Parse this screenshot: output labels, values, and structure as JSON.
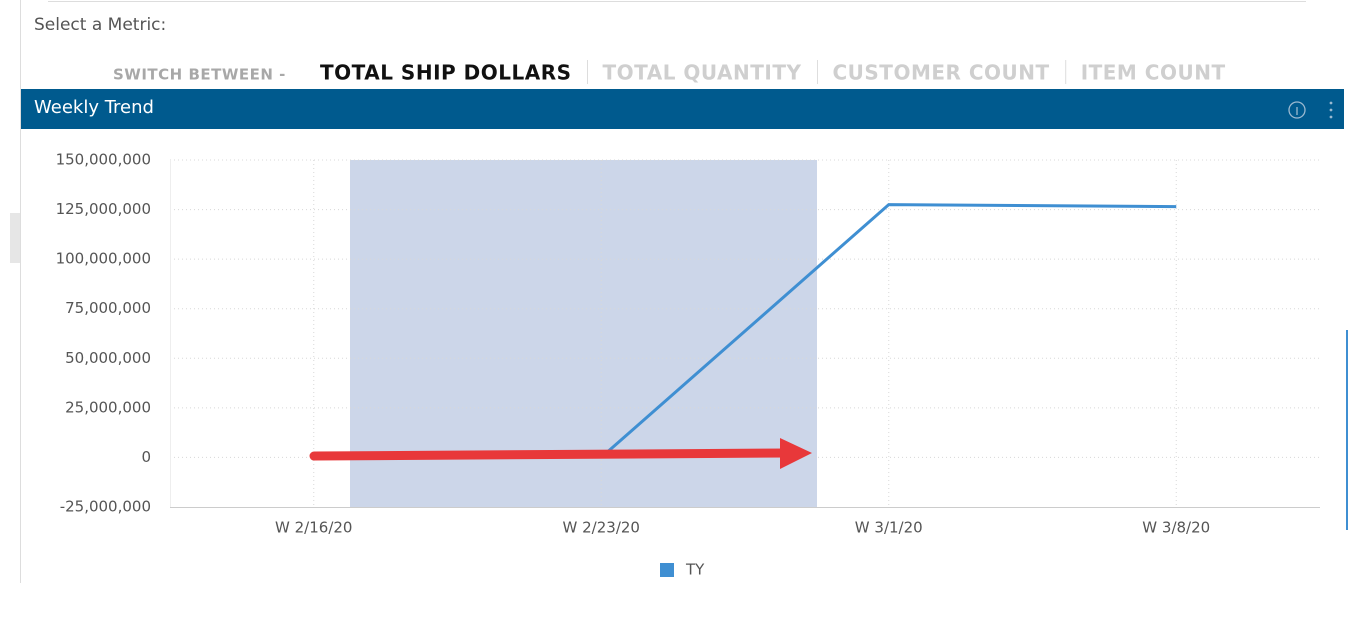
{
  "header": {
    "prompt": "Select a Metric:",
    "switch_label": "SWITCH BETWEEN -",
    "metrics": [
      "TOTAL SHIP DOLLARS",
      "TOTAL QUANTITY",
      "CUSTOMER COUNT",
      "ITEM COUNT"
    ]
  },
  "panel": {
    "title": "Weekly Trend"
  },
  "chart_data": {
    "type": "line",
    "categories": [
      "W 2/16/20",
      "W 2/23/20",
      "W 3/1/20",
      "W 3/8/20"
    ],
    "series": [
      {
        "name": "TY",
        "color": "#3f8fd2",
        "values": [
          null,
          0,
          127500000,
          126500000
        ]
      }
    ],
    "ylim": [
      -25000000,
      150000000
    ],
    "yticks": [
      {
        "value": -25000000,
        "label": "-25,000,000"
      },
      0,
      {
        "value": 25000000,
        "label": "25,000,000"
      },
      {
        "value": 50000000,
        "label": "50,000,000"
      },
      {
        "value": 75000000,
        "label": "75,000,000"
      },
      {
        "value": 100000000,
        "label": "100,000,000"
      },
      {
        "value": 125000000,
        "label": "125,000,000"
      },
      {
        "value": 150000000,
        "label": "150,000,000"
      }
    ],
    "grid": true
  }
}
